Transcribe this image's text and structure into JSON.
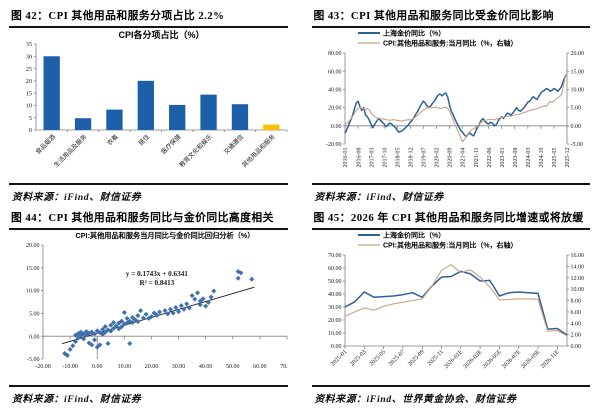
{
  "figures": [
    {
      "header": "图 42：CPI 其他用品和服务分项占比 2.2%",
      "source": "资料来源：iFind、财信证券"
    },
    {
      "header": "图 43：CPI 其他用品和服务同比受金价同比影响",
      "source": "资料来源：iFind、财信证券"
    },
    {
      "header": "图 44：CPI 其他用品和服务同比与金价同比高度相关",
      "source": "资料来源：iFind、财信证券"
    },
    {
      "header": "图 45：2026 年 CPI 其他用品和服务同比增速或将放缓",
      "source": "资料来源：iFind、世界黄金协会、财信证券"
    }
  ],
  "colors": {
    "bar_blue": "#1D5FA8",
    "gold": "#FFC000",
    "line_blue": "#2E6096",
    "line_tan": "#C9A284",
    "scatter_blue": "#3F6FAF",
    "axis": "#808080",
    "text": "#1A1A1A"
  },
  "chart_data": [
    {
      "type": "bar",
      "title": "CPI各分项占比（%）",
      "categories": [
        "食品烟酒",
        "生活用品及服务",
        "衣着",
        "居住",
        "医疗保健",
        "教育文化和娱乐",
        "交通通信",
        "其他用品和服务"
      ],
      "values": [
        30,
        4.8,
        8.3,
        20,
        10.2,
        14.4,
        10.5,
        2.2
      ],
      "highlight_index": 7,
      "xlabel": "",
      "ylabel": "",
      "ylim": [
        0,
        35
      ],
      "yticks": {
        "values": [
          0,
          5,
          10,
          15,
          20,
          25,
          30,
          35
        ],
        "labels": [
          "0",
          "5",
          "10",
          "15",
          "20",
          "25",
          "30",
          "35"
        ]
      }
    },
    {
      "type": "line",
      "title": "",
      "legend": [
        "上海金价同比（%）",
        "CPI:其他用品和服务:当月同比（%，右轴）"
      ],
      "x_labels": [
        "2016-01",
        "2016-08",
        "2017-03",
        "2017-10",
        "2018-05",
        "2018-12",
        "2019-07",
        "2020-02",
        "2020-09",
        "2021-04",
        "2021-11",
        "2022-06",
        "2023-01",
        "2023-08",
        "2024-03",
        "2024-10",
        "2025-05",
        "2025-12"
      ],
      "tick_step": 7,
      "xlabel_rotate": -90,
      "left_ylim": [
        -20,
        80
      ],
      "left_yticks": {
        "values": [
          -20,
          0,
          20,
          40,
          60,
          80
        ],
        "labels": [
          "-20.00",
          "0.00",
          "20.00",
          "40.00",
          "60.00",
          "80.00"
        ]
      },
      "right_ylim": [
        -5,
        20
      ],
      "right_yticks": {
        "values": [
          -5,
          0,
          5,
          10,
          15,
          20
        ],
        "labels": [
          "-5.00",
          "0.00",
          "5.00",
          "10.00",
          "15.00",
          "20.00"
        ]
      },
      "series": [
        {
          "name": "上海金价同比（%）",
          "axis": "left",
          "color": "#2E6096",
          "width": 1.5,
          "values": [
            -8,
            -4,
            1,
            6,
            11,
            18,
            25,
            27,
            21,
            17,
            20,
            12,
            10,
            6,
            2,
            -2,
            2,
            5,
            8,
            6,
            4,
            2,
            -1,
            1,
            3,
            2,
            0,
            -2,
            -5,
            -7,
            -6,
            -5,
            -3,
            -1,
            1,
            4,
            6,
            9,
            13,
            16,
            20,
            24,
            27,
            25,
            22,
            20,
            22,
            25,
            27,
            31,
            34,
            35,
            33,
            35,
            36,
            32,
            23,
            16,
            12,
            7,
            3,
            -1,
            -5,
            -7,
            -10,
            -12,
            -9,
            -8,
            -10,
            -11,
            -6,
            -2,
            2,
            6,
            8,
            5,
            3,
            2,
            4,
            3,
            0,
            1,
            5,
            8,
            10,
            8,
            11,
            14,
            13,
            12,
            14,
            17,
            20,
            17,
            16,
            18,
            20,
            23,
            26,
            27,
            30,
            32,
            30,
            29,
            33,
            36,
            38,
            39,
            41,
            40,
            38,
            39,
            41,
            40,
            38,
            40,
            43,
            49,
            54,
            57
          ]
        },
        {
          "name": "CPI:其他用品和服务:当月同比（%，右轴）",
          "axis": "right",
          "color": "#C9A284",
          "width": 1.1,
          "values": [
            0.4,
            0.8,
            1.2,
            1.8,
            2.5,
            3.3,
            4.2,
            4.9,
            5.0,
            4.8,
            4.7,
            4.6,
            4.7,
            4.3,
            3.5,
            2.9,
            2.5,
            2.2,
            2.1,
            2.0,
            1.9,
            1.8,
            1.7,
            1.6,
            1.5,
            1.6,
            1.7,
            1.6,
            1.5,
            1.4,
            1.3,
            1.4,
            1.5,
            1.6,
            1.7,
            1.6,
            1.8,
            2.1,
            2.5,
            2.9,
            3.4,
            3.9,
            4.3,
            4.6,
            4.9,
            5.0,
            4.9,
            5.0,
            5.1,
            5.0,
            4.9,
            4.8,
            4.9,
            5.0,
            5.1,
            4.8,
            4.0,
            2.8,
            1.5,
            0.3,
            -0.8,
            -2.0,
            -3.2,
            -4.4,
            -3.7,
            -2.9,
            -2.1,
            -1.5,
            -1.1,
            -0.8,
            -0.5,
            -0.1,
            0.5,
            1.0,
            1.3,
            1.5,
            1.6,
            1.7,
            1.8,
            1.7,
            1.6,
            1.8,
            2.0,
            2.2,
            2.3,
            2.4,
            2.5,
            2.6,
            2.7,
            2.6,
            2.8,
            3.0,
            3.2,
            3.1,
            3.3,
            3.5,
            3.6,
            3.8,
            4.0,
            4.2,
            4.4,
            4.5,
            4.6,
            4.7,
            4.9,
            5.1,
            5.3,
            5.5,
            5.3,
            6.1,
            6.7,
            6.4,
            6.9,
            7.3,
            7.7,
            8.0,
            8.5,
            10.8,
            13.2,
            14.5
          ]
        }
      ]
    },
    {
      "type": "scatter",
      "title": "CPI:其他用品和服务当月同比与金价同比回归分析（%）",
      "equation": "y = 0.1743x + 0.6341",
      "r_squared": "R² = 0.8413",
      "trend": {
        "slope": 0.1743,
        "intercept": 0.6341,
        "x_from": -13,
        "x_to": 58
      },
      "xlim": [
        -20,
        70
      ],
      "xticks": {
        "values": [
          -20,
          -10,
          0,
          10,
          20,
          30,
          40,
          50,
          60,
          70
        ],
        "labels": [
          "-20.00",
          "-10.00",
          "0.00",
          "10.00",
          "20.00",
          "30.00",
          "40.00",
          "50.00",
          "60.00",
          "70.00"
        ]
      },
      "ylim": [
        -5,
        20
      ],
      "yticks": {
        "values": [
          -5,
          0,
          5,
          10,
          15,
          20
        ],
        "labels": [
          "-5.00",
          "0.00",
          "5.00",
          "10.00",
          "15.00",
          "20.00"
        ]
      },
      "points": [
        [
          -12,
          -3.8
        ],
        [
          -11,
          -4.2
        ],
        [
          -10,
          -2.9
        ],
        [
          -9,
          -2.1
        ],
        [
          -8,
          -1.2
        ],
        [
          -8,
          0.2
        ],
        [
          -7,
          -0.4
        ],
        [
          -7,
          0.6
        ],
        [
          -6,
          0.1
        ],
        [
          -6,
          0.9
        ],
        [
          -5,
          -0.6
        ],
        [
          -5,
          0.5
        ],
        [
          -4,
          0.3
        ],
        [
          -4,
          1.0
        ],
        [
          -3,
          -1.5
        ],
        [
          -3,
          0.7
        ],
        [
          -2,
          -1.9
        ],
        [
          -2,
          0.9
        ],
        [
          -1,
          -0.8
        ],
        [
          -1,
          0.5
        ],
        [
          0,
          -2.4
        ],
        [
          0,
          1.2
        ],
        [
          1,
          -1.9
        ],
        [
          1,
          0.8
        ],
        [
          2,
          0.4
        ],
        [
          2,
          1.5
        ],
        [
          3,
          0.9
        ],
        [
          3,
          2.1
        ],
        [
          4,
          -1.6
        ],
        [
          4,
          1.4
        ],
        [
          5,
          1.1
        ],
        [
          5,
          2.4
        ],
        [
          6,
          1.7
        ],
        [
          6,
          3.0
        ],
        [
          7,
          2.3
        ],
        [
          8,
          1.6
        ],
        [
          8,
          2.9
        ],
        [
          9,
          2.1
        ],
        [
          9,
          3.3
        ],
        [
          10,
          2.7
        ],
        [
          10,
          5.2
        ],
        [
          11,
          2.9
        ],
        [
          11,
          3.9
        ],
        [
          12,
          -1.6
        ],
        [
          12,
          3.3
        ],
        [
          13,
          3.0
        ],
        [
          13,
          4.1
        ],
        [
          14,
          3.6
        ],
        [
          15,
          3.2
        ],
        [
          15,
          4.5
        ],
        [
          16,
          5.6
        ],
        [
          17,
          4.0
        ],
        [
          18,
          4.8
        ],
        [
          19,
          3.9
        ],
        [
          20,
          4.3
        ],
        [
          21,
          5.1
        ],
        [
          22,
          4.6
        ],
        [
          23,
          5.3
        ],
        [
          25,
          5.6
        ],
        [
          26,
          4.9
        ],
        [
          27,
          5.9
        ],
        [
          28,
          5.1
        ],
        [
          29,
          6.3
        ],
        [
          30,
          5.4
        ],
        [
          31,
          6.7
        ],
        [
          32,
          5.9
        ],
        [
          33,
          7.1
        ],
        [
          34,
          6.2
        ],
        [
          35,
          8.9
        ],
        [
          36,
          8.1
        ],
        [
          37,
          9.5
        ],
        [
          38,
          6.9
        ],
        [
          38,
          7.7
        ],
        [
          39,
          8.2
        ],
        [
          40,
          6.6
        ],
        [
          41,
          7.4
        ],
        [
          42,
          8.6
        ],
        [
          43,
          9.9
        ],
        [
          52,
          12.7
        ],
        [
          52,
          14.2
        ],
        [
          53,
          13.9
        ],
        [
          57,
          12.5
        ]
      ]
    },
    {
      "type": "line",
      "title": "",
      "legend": [
        "上海金价同比（%）",
        "CPI:其他用品和服务:当月同比（%，右轴）"
      ],
      "x_labels": [
        "2025-01",
        "2025-03",
        "2025-05",
        "2025-07",
        "2025-09",
        "2025-11",
        "2026-01E",
        "2026-03E",
        "2026-05E",
        "2026-07E",
        "2026-09E",
        "2026-11E"
      ],
      "tick_step": 2,
      "xlabel_rotate": -45,
      "left_ylim": [
        0,
        70
      ],
      "left_yticks": {
        "values": [
          0,
          10,
          20,
          30,
          40,
          50,
          60,
          70
        ],
        "labels": [
          "0.00",
          "10.00",
          "20.00",
          "30.00",
          "40.00",
          "50.00",
          "60.00",
          "70.00"
        ]
      },
      "right_ylim": [
        0,
        16
      ],
      "right_yticks": {
        "values": [
          0,
          2,
          4,
          6,
          8,
          10,
          12,
          14,
          16
        ],
        "labels": [
          "0.00",
          "2.00",
          "4.00",
          "6.00",
          "8.00",
          "10.00",
          "12.00",
          "14.00",
          "16.00"
        ]
      },
      "series": [
        {
          "name": "上海金价同比（%）",
          "axis": "left",
          "color": "#2E6096",
          "width": 1.5,
          "values": [
            30,
            34,
            41.5,
            37.5,
            38,
            38.5,
            39.5,
            41,
            37.5,
            46,
            53,
            53.5,
            57.5,
            55.5,
            50,
            50.5,
            38.5,
            41,
            41.5,
            41,
            40.5,
            13,
            13.5,
            8.5
          ]
        },
        {
          "name": "CPI:其他用品和服务:当月同比（%，右轴）",
          "axis": "right",
          "color": "#C9A284",
          "width": 1.1,
          "values": [
            5.2,
            6.0,
            6.7,
            6.3,
            7.0,
            7.4,
            7.7,
            8.0,
            8.3,
            10.5,
            13.3,
            14.3,
            12.9,
            13.4,
            12.1,
            10.4,
            8.1,
            8.2,
            8.3,
            8.3,
            8.2,
            2.6,
            2.7,
            1.8
          ]
        }
      ]
    }
  ]
}
